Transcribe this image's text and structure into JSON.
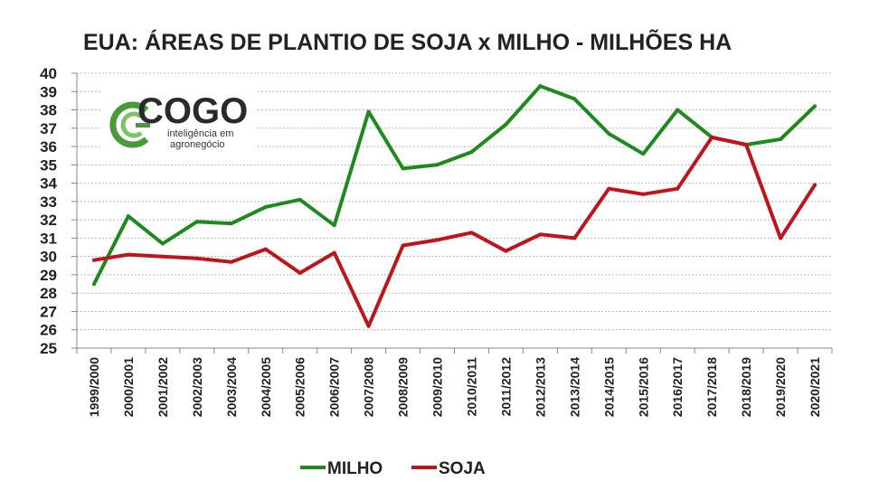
{
  "chart_data": {
    "type": "line",
    "title": "EUA: ÁREAS DE PLANTIO DE SOJA x MILHO - MILHÕES HA",
    "categories": [
      "1999/2000",
      "2000/2001",
      "2001/2002",
      "2002/2003",
      "2003/2004",
      "2004/2005",
      "2005/2006",
      "2006/2007",
      "2007/2008",
      "2008/2009",
      "2009/2010",
      "2010/2011",
      "2011/2012",
      "2012/2013",
      "2013/2014",
      "2014/2015",
      "2015/2016",
      "2016/2017",
      "2017/2018",
      "2018/2019",
      "2019/2020",
      "2020/2021"
    ],
    "series": [
      {
        "name": "MILHO",
        "color": "#1e8a1e",
        "values": [
          28.5,
          32.2,
          30.7,
          31.9,
          31.8,
          32.7,
          33.1,
          31.7,
          37.9,
          34.8,
          35.0,
          35.7,
          37.2,
          39.3,
          38.6,
          36.7,
          35.6,
          38.0,
          36.5,
          36.1,
          36.4,
          38.2
        ]
      },
      {
        "name": "SOJA",
        "color": "#c0141a",
        "values": [
          29.8,
          30.1,
          30.0,
          29.9,
          29.7,
          30.4,
          29.1,
          30.2,
          26.2,
          30.6,
          30.9,
          31.3,
          30.3,
          31.2,
          31.0,
          33.7,
          33.4,
          33.7,
          36.5,
          36.1,
          31.0,
          33.9
        ]
      }
    ],
    "ylim": [
      25,
      40
    ],
    "yticks": [
      25,
      26,
      27,
      28,
      29,
      30,
      31,
      32,
      33,
      34,
      35,
      36,
      37,
      38,
      39,
      40
    ],
    "grid": true,
    "legend_position": "bottom-center"
  },
  "logo": {
    "name": "COGO",
    "tagline_line1": "inteligência em",
    "tagline_line2": "agronegócio",
    "color": "#4a9a3a"
  }
}
